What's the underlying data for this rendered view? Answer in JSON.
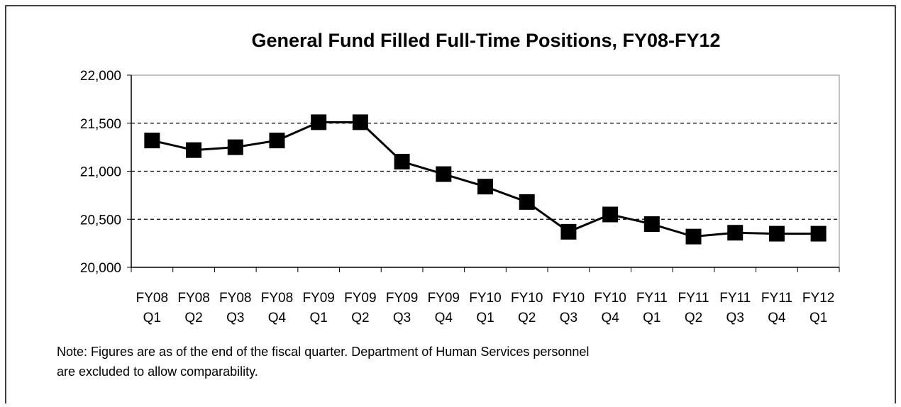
{
  "chart_data": {
    "type": "line",
    "title": "General Fund Filled Full-Time Positions, FY08-FY12",
    "categories": [
      [
        "FY08",
        "Q1"
      ],
      [
        "FY08",
        "Q2"
      ],
      [
        "FY08",
        "Q3"
      ],
      [
        "FY08",
        "Q4"
      ],
      [
        "FY09",
        "Q1"
      ],
      [
        "FY09",
        "Q2"
      ],
      [
        "FY09",
        "Q3"
      ],
      [
        "FY09",
        "Q4"
      ],
      [
        "FY10",
        "Q1"
      ],
      [
        "FY10",
        "Q2"
      ],
      [
        "FY10",
        "Q3"
      ],
      [
        "FY10",
        "Q4"
      ],
      [
        "FY11",
        "Q1"
      ],
      [
        "FY11",
        "Q2"
      ],
      [
        "FY11",
        "Q3"
      ],
      [
        "FY11",
        "Q4"
      ],
      [
        "FY12",
        "Q1"
      ]
    ],
    "values": [
      21320,
      21220,
      21250,
      21320,
      21510,
      21510,
      21100,
      20970,
      20840,
      20680,
      20370,
      20550,
      20450,
      20320,
      20360,
      20350,
      20350
    ],
    "color": "#000000",
    "ylim": [
      20000,
      22000
    ],
    "yticks": [
      {
        "value": 20000,
        "label": "20,000"
      },
      {
        "value": 20500,
        "label": "20,500"
      },
      {
        "value": 21000,
        "label": "21,000"
      },
      {
        "value": 21500,
        "label": "21,500"
      },
      {
        "value": 22000,
        "label": "22,000"
      }
    ],
    "grid": true,
    "note": [
      "Note: Figures are as of the end of the fiscal quarter. Department of Human Services personnel",
      "are excluded to allow comparability."
    ]
  }
}
